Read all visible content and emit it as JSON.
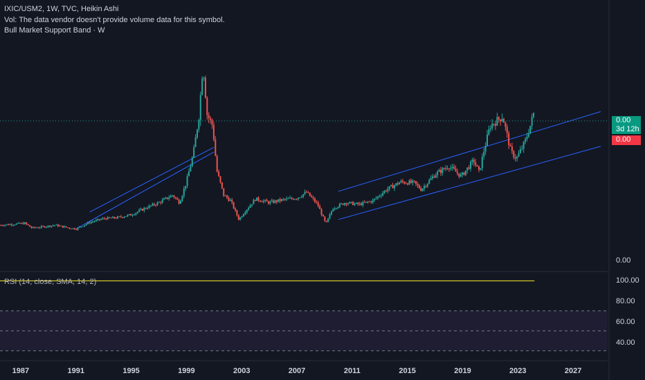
{
  "legend": {
    "symbol_line": "IXIC/USM2, 1W, TVC, Heikin Ashi",
    "vol_line": "Vol: The data vendor doesn't provide volume data for this symbol.",
    "indicator_line": "Bull Market Support Band · W"
  },
  "rsi": {
    "label": "RSI (14, close, SMA, 14, 2)",
    "value_label": "100.00",
    "value": 100,
    "levels": [
      70,
      50,
      30
    ]
  },
  "price_panel": {
    "last_value": "0.00",
    "countdown": "3d 12h",
    "second_value": "0.00",
    "axis_label": "0.00"
  },
  "rsi_axis_labels": [
    "100.00",
    "80.00",
    "60.00",
    "40.00"
  ],
  "x_labels": [
    "1987",
    "1991",
    "1995",
    "1999",
    "2003",
    "2007",
    "2011",
    "2015",
    "2019",
    "2023",
    "2027"
  ],
  "colors": {
    "background": "#131722",
    "up": "#26a69a",
    "down": "#ef5350",
    "trendline": "#2962ff",
    "rsi_line": "#d4c728",
    "rsi_band": "#7e57c2"
  },
  "chart_data": {
    "type": "candlestick",
    "x_range": [
      1985.5,
      2029.5
    ],
    "series": [
      {
        "values": [
          [
            1985.5,
            34
          ],
          [
            1986.5,
            35
          ],
          [
            1987.3,
            36
          ],
          [
            1987.8,
            31
          ],
          [
            1988.5,
            32
          ],
          [
            1989.5,
            34
          ],
          [
            1990.5,
            31
          ],
          [
            1991.0,
            30
          ],
          [
            1992.0,
            37
          ],
          [
            1993.0,
            41
          ],
          [
            1994.0,
            42
          ],
          [
            1995.0,
            45
          ],
          [
            1996.0,
            52
          ],
          [
            1997.0,
            58
          ],
          [
            1998.0,
            66
          ],
          [
            1998.5,
            58
          ],
          [
            1999.0,
            80
          ],
          [
            1999.5,
            110
          ],
          [
            1999.9,
            150
          ],
          [
            2000.2,
            206
          ],
          [
            2000.5,
            152
          ],
          [
            2000.9,
            140
          ],
          [
            2001.2,
            92
          ],
          [
            2001.7,
            66
          ],
          [
            2002.2,
            60
          ],
          [
            2002.8,
            40
          ],
          [
            2003.2,
            48
          ],
          [
            2004.0,
            62
          ],
          [
            2005.0,
            58
          ],
          [
            2006.0,
            61
          ],
          [
            2007.0,
            63
          ],
          [
            2007.7,
            69
          ],
          [
            2008.5,
            56
          ],
          [
            2009.1,
            35
          ],
          [
            2009.6,
            52
          ],
          [
            2010.5,
            58
          ],
          [
            2011.5,
            56
          ],
          [
            2012.5,
            60
          ],
          [
            2013.5,
            72
          ],
          [
            2014.5,
            80
          ],
          [
            2015.5,
            79
          ],
          [
            2016.0,
            72
          ],
          [
            2017.0,
            88
          ],
          [
            2018.0,
            97
          ],
          [
            2018.9,
            86
          ],
          [
            2019.8,
            103
          ],
          [
            2020.2,
            90
          ],
          [
            2020.5,
            111
          ],
          [
            2021.0,
            140
          ],
          [
            2021.9,
            150
          ],
          [
            2022.5,
            112
          ],
          [
            2022.9,
            105
          ],
          [
            2023.5,
            122
          ],
          [
            2023.9,
            140
          ],
          [
            2024.2,
            156
          ]
        ]
      }
    ],
    "trendlines": [
      [
        [
          1991.0,
          30
        ],
        [
          2001.0,
          112
        ]
      ],
      [
        [
          1992.0,
          48
        ],
        [
          2001.0,
          117
        ]
      ],
      [
        [
          2010.0,
          40
        ],
        [
          2029.0,
          118
        ]
      ],
      [
        [
          2010.0,
          70
        ],
        [
          2029.0,
          155
        ]
      ]
    ]
  }
}
